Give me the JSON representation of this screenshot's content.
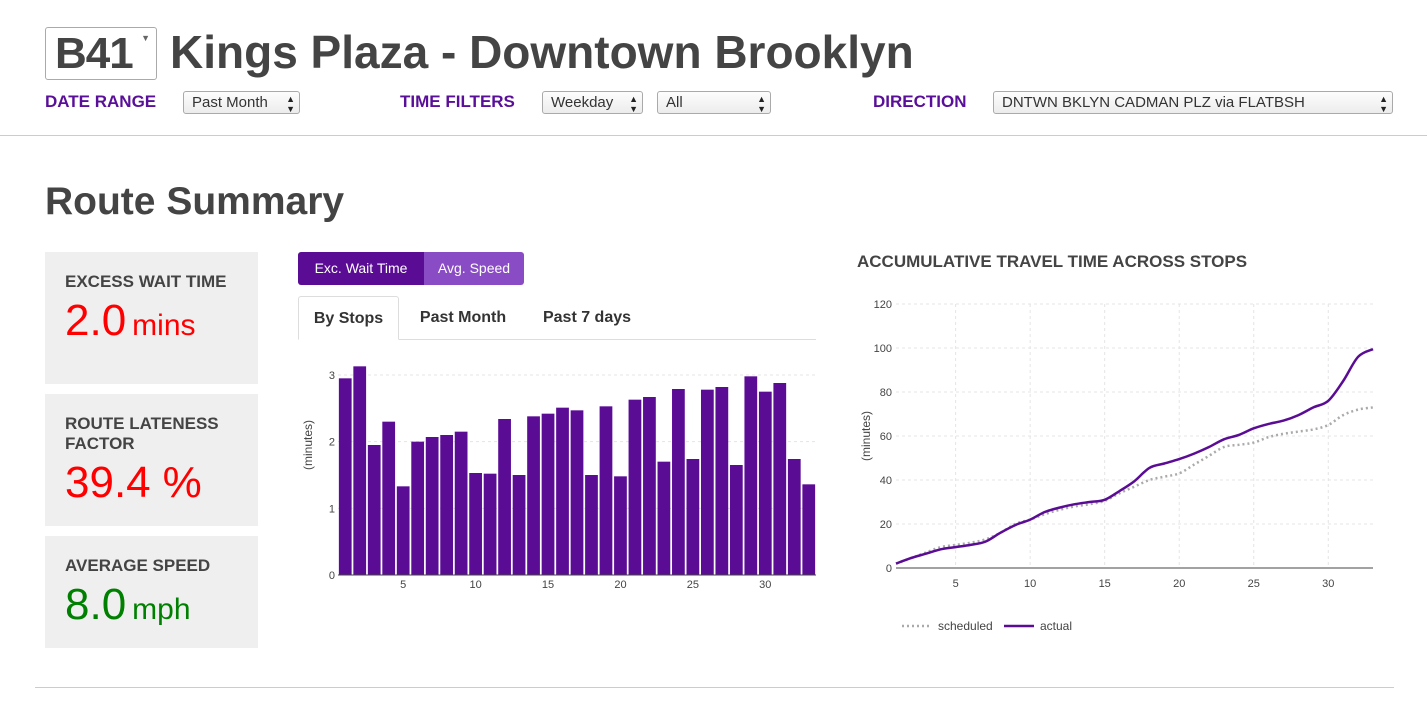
{
  "route": {
    "id": "B41",
    "name": "Kings Plaza - Downtown Brooklyn"
  },
  "filters": {
    "date_range_label": "DATE RANGE",
    "date_range_value": "Past Month",
    "time_filters_label": "TIME FILTERS",
    "day_type_value": "Weekday",
    "time_period_value": "All",
    "direction_label": "DIRECTION",
    "direction_value": "DNTWN BKLYN CADMAN PLZ via FLATBSH"
  },
  "section": {
    "title": "Route Summary"
  },
  "metrics": [
    {
      "label": "EXCESS WAIT TIME",
      "value": "2.0",
      "unit": "mins",
      "color": "#ff0000"
    },
    {
      "label": "ROUTE LATENESS FACTOR",
      "value": "39.4",
      "unit": "%",
      "color": "#ff0000"
    },
    {
      "label": "AVERAGE SPEED",
      "value": "8.0",
      "unit": "mph",
      "color": "#008000"
    }
  ],
  "metric_toggle": {
    "wait_label": "Exc. Wait Time",
    "speed_label": "Avg. Speed"
  },
  "tabs": {
    "by_stops": "By Stops",
    "past_month": "Past Month",
    "past_7_days": "Past 7 days"
  },
  "colors": {
    "accent": "#5a0f99",
    "bar": "#5b0c94",
    "scheduled": "#aaaaaa",
    "actual": "#5b0c94",
    "toggle_inactive": "#8a4cc4"
  },
  "chart_data": [
    {
      "type": "bar",
      "title": "",
      "xlabel": "",
      "ylabel": "(minutes)",
      "x": [
        1,
        2,
        3,
        4,
        5,
        6,
        7,
        8,
        9,
        10,
        11,
        12,
        13,
        14,
        15,
        16,
        17,
        18,
        19,
        20,
        21,
        22,
        23,
        24,
        25,
        26,
        27,
        28,
        29,
        30,
        31,
        32,
        33
      ],
      "values": [
        2.95,
        3.13,
        1.95,
        2.3,
        1.33,
        2.0,
        2.07,
        2.1,
        2.15,
        1.53,
        1.52,
        2.34,
        1.5,
        2.38,
        2.42,
        2.51,
        2.47,
        1.5,
        2.53,
        1.48,
        2.63,
        2.67,
        1.7,
        2.79,
        1.74,
        2.78,
        2.82,
        1.65,
        2.98,
        2.75,
        2.88,
        1.74,
        1.36
      ],
      "xlim": [
        0.5,
        33.5
      ],
      "ylim": [
        0,
        3.3
      ],
      "x_ticks": [
        "5",
        "10",
        "15",
        "20",
        "25",
        "30"
      ],
      "y_ticks": [
        "0",
        "1",
        "2",
        "3"
      ]
    },
    {
      "type": "line",
      "title": "ACCUMULATIVE TRAVEL TIME ACROSS STOPS",
      "xlabel": "",
      "ylabel": "(minutes)",
      "x": [
        1,
        2,
        3,
        4,
        5,
        6,
        7,
        8,
        9,
        10,
        11,
        12,
        13,
        14,
        15,
        16,
        17,
        18,
        19,
        20,
        21,
        22,
        23,
        24,
        25,
        26,
        27,
        28,
        29,
        30,
        31,
        32,
        33
      ],
      "series": [
        {
          "name": "scheduled",
          "values": [
            2,
            4.5,
            7,
            9.5,
            10.5,
            11.5,
            13,
            16,
            20,
            22,
            24.5,
            26.5,
            28,
            29,
            30.5,
            34,
            37,
            40,
            41.5,
            43,
            47,
            51,
            55,
            56,
            57,
            59.5,
            61,
            62,
            63,
            65,
            69.5,
            72,
            73
          ]
        },
        {
          "name": "actual",
          "values": [
            2,
            4.5,
            6.5,
            8.5,
            9.5,
            10.5,
            12,
            16,
            19.5,
            22,
            25.5,
            27.5,
            29,
            30,
            31,
            35,
            39.5,
            45.5,
            47.5,
            49.5,
            52,
            55,
            58.5,
            60.5,
            63.5,
            65.5,
            67,
            69.5,
            73,
            76,
            85,
            96,
            99.5
          ]
        }
      ],
      "legend": [
        "scheduled",
        "actual"
      ],
      "legend_position": "bottom-left",
      "xlim": [
        1,
        33
      ],
      "ylim": [
        0,
        120
      ],
      "x_ticks": [
        "5",
        "10",
        "15",
        "20",
        "25",
        "30"
      ],
      "y_ticks": [
        "0",
        "20",
        "40",
        "60",
        "80",
        "100",
        "120"
      ]
    }
  ]
}
